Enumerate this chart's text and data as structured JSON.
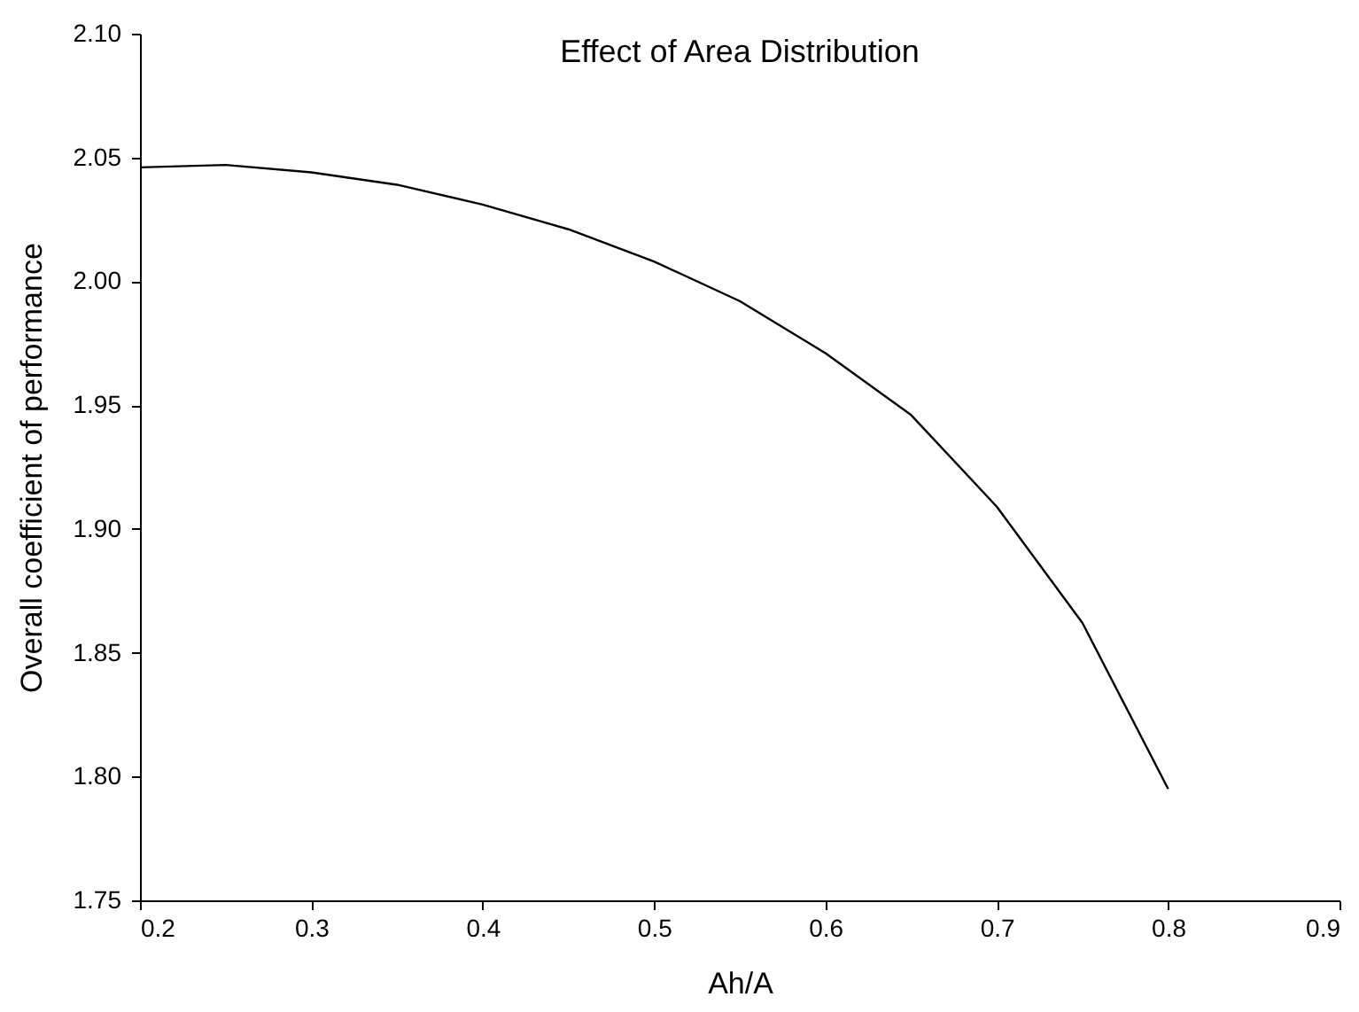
{
  "chart_data": {
    "type": "line",
    "title": "Effect of Area Distribution",
    "xlabel": "Ah/A",
    "ylabel": "Overall coefficient of performance",
    "x": [
      0.2,
      0.25,
      0.3,
      0.35,
      0.4,
      0.45,
      0.5,
      0.55,
      0.6,
      0.65,
      0.7,
      0.75,
      0.8
    ],
    "series": [
      {
        "color": "#000000",
        "values": [
          2.046,
          2.047,
          2.044,
          2.039,
          2.031,
          2.021,
          2.008,
          1.992,
          1.971,
          1.946,
          1.909,
          1.862,
          1.795
        ]
      }
    ],
    "xlim": [
      0.2,
      0.9
    ],
    "xticks": [
      0.2,
      0.3,
      0.4,
      0.5,
      0.6,
      0.7,
      0.8,
      0.9
    ],
    "ylim": [
      1.75,
      2.1
    ],
    "yticks": [
      1.75,
      {
        "value": 1.8,
        "label": "1.80"
      },
      1.85,
      {
        "value": 1.9,
        "label": "1.90"
      },
      1.95,
      {
        "value": 2.0,
        "label": "2.00"
      },
      2.05,
      {
        "value": 2.1,
        "label": "2.10"
      }
    ],
    "grid": false,
    "marker": "none",
    "line_style": "solid"
  }
}
